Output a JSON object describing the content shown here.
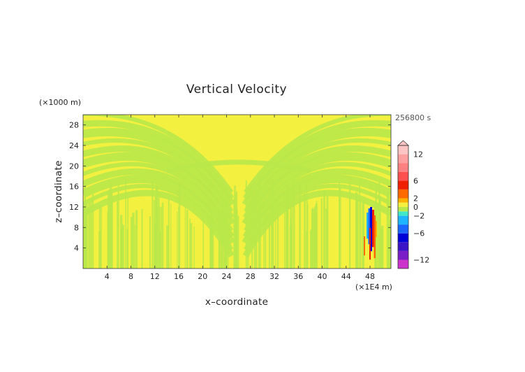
{
  "chart_data": {
    "type": "heatmap",
    "title": "Vertical Velocity",
    "time_label": "256800 s",
    "xlabel": "x–coordinate",
    "ylabel": "z–coordinate",
    "x_unit": "(×1E4 m)",
    "y_unit": "(×1000 m)",
    "xlim": [
      0,
      51.5
    ],
    "ylim": [
      0,
      30
    ],
    "x_ticks": [
      4,
      8,
      12,
      16,
      20,
      24,
      28,
      32,
      36,
      40,
      44,
      48
    ],
    "y_ticks": [
      4,
      8,
      12,
      16,
      20,
      24,
      28
    ],
    "field": {
      "background_level": "0 to 1",
      "alternating_level": "-1 to 0",
      "pattern": "fine alternating vertical bands, arching bands curving symmetrically around x≈24-28 at upper levels",
      "feature": {
        "x": 48,
        "z_range": [
          2,
          12
        ],
        "min_value": "< -4",
        "max_value": "> 6"
      }
    },
    "colorbar": {
      "label_ticks": [
        "12",
        "6",
        "2",
        "0",
        "−2",
        "−6",
        "−12"
      ],
      "label_values": [
        12,
        6,
        2,
        0,
        -2,
        -6,
        -12
      ],
      "range": [
        -14,
        14
      ],
      "extend": "max",
      "stops": [
        {
          "v": -14,
          "color": "#ff00ff"
        },
        {
          "v": -12,
          "color": "#cc33cc"
        },
        {
          "v": -10,
          "color": "#7a1ec8"
        },
        {
          "v": -8,
          "color": "#3c14c8"
        },
        {
          "v": -6,
          "color": "#0000d8"
        },
        {
          "v": -4,
          "color": "#1a66ff"
        },
        {
          "v": -2,
          "color": "#1eb4ff"
        },
        {
          "v": -1,
          "color": "#40e8c8"
        },
        {
          "v": 0,
          "color": "#b9e84a"
        },
        {
          "v": 1,
          "color": "#f4f040"
        },
        {
          "v": 2,
          "color": "#ffb000"
        },
        {
          "v": 4,
          "color": "#ff6a00"
        },
        {
          "v": 6,
          "color": "#ee2000"
        },
        {
          "v": 8,
          "color": "#ff5050"
        },
        {
          "v": 10,
          "color": "#ff8080"
        },
        {
          "v": 12,
          "color": "#ffa0a0"
        },
        {
          "v": 14,
          "color": "#ffc4c4"
        }
      ]
    }
  }
}
